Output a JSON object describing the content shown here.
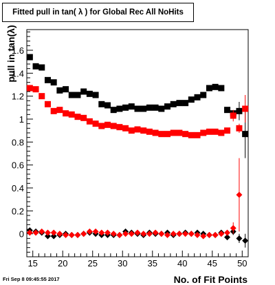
{
  "title": "Fitted pull in tan( λ ) for Global Rec All NoHits",
  "footer": "Fri Sep  8 09:45:55 2017",
  "chart_data": {
    "type": "scatter",
    "title": "Fitted pull in tan( λ ) for Global Rec All NoHits",
    "xlabel": "No. of Fit Points",
    "ylabel": "pull in tan(λ)",
    "xlim": [
      14,
      51
    ],
    "ylim": [
      -0.2,
      1.78
    ],
    "xticks": [
      15,
      20,
      25,
      30,
      35,
      40,
      45,
      50
    ],
    "yticks": [
      0,
      0.2,
      0.4,
      0.6,
      0.8,
      1,
      1.2,
      1.4,
      1.6
    ],
    "ytick_labels": [
      "0",
      "0.2",
      "0.4",
      "0.6",
      "0.8",
      "1",
      "1.2",
      "1.4",
      "1.6"
    ],
    "grid": false,
    "colors": {
      "black": "#000000",
      "red": "#ff0000"
    },
    "series": [
      {
        "role": "sigma-black",
        "color": "#000000",
        "marker": "square",
        "points": [
          [
            14.5,
            1.54
          ],
          [
            15.5,
            1.46
          ],
          [
            16.5,
            1.45
          ],
          [
            17.5,
            1.34
          ],
          [
            18.5,
            1.32
          ],
          [
            19.5,
            1.25
          ],
          [
            20.5,
            1.26
          ],
          [
            21.5,
            1.21
          ],
          [
            22.5,
            1.21
          ],
          [
            23.5,
            1.24
          ],
          [
            24.5,
            1.22
          ],
          [
            25.5,
            1.21
          ],
          [
            26.5,
            1.13
          ],
          [
            27.5,
            1.12
          ],
          [
            28.5,
            1.08
          ],
          [
            29.5,
            1.09
          ],
          [
            30.5,
            1.1
          ],
          [
            31.5,
            1.11
          ],
          [
            32.5,
            1.09
          ],
          [
            33.5,
            1.09
          ],
          [
            34.5,
            1.1
          ],
          [
            35.5,
            1.1
          ],
          [
            36.5,
            1.09
          ],
          [
            37.5,
            1.11
          ],
          [
            38.5,
            1.13
          ],
          [
            39.5,
            1.14
          ],
          [
            40.5,
            1.14
          ],
          [
            41.5,
            1.17
          ],
          [
            42.5,
            1.19
          ],
          [
            43.5,
            1.21
          ],
          [
            44.5,
            1.27
          ],
          [
            45.5,
            1.28
          ],
          [
            46.5,
            1.27
          ],
          [
            47.5,
            1.08
          ],
          [
            48.5,
            1.05
          ],
          [
            49.5,
            1.07
          ],
          [
            50.5,
            0.87
          ]
        ],
        "errors": [
          0,
          0,
          0,
          0,
          0,
          0,
          0,
          0,
          0,
          0,
          0,
          0,
          0,
          0,
          0,
          0,
          0,
          0,
          0,
          0,
          0,
          0,
          0,
          0,
          0,
          0,
          0,
          0,
          0,
          0,
          0,
          0,
          0,
          0,
          0,
          0.08,
          0.21
        ]
      },
      {
        "role": "sigma-red",
        "color": "#ff0000",
        "marker": "square",
        "points": [
          [
            14.5,
            1.27
          ],
          [
            15.5,
            1.26
          ],
          [
            16.5,
            1.2
          ],
          [
            17.5,
            1.13
          ],
          [
            18.5,
            1.07
          ],
          [
            19.5,
            1.08
          ],
          [
            20.5,
            1.05
          ],
          [
            21.5,
            1.04
          ],
          [
            22.5,
            1.02
          ],
          [
            23.5,
            1.01
          ],
          [
            24.5,
            0.98
          ],
          [
            25.5,
            0.96
          ],
          [
            26.5,
            0.94
          ],
          [
            27.5,
            0.95
          ],
          [
            28.5,
            0.94
          ],
          [
            29.5,
            0.93
          ],
          [
            30.5,
            0.92
          ],
          [
            31.5,
            0.9
          ],
          [
            32.5,
            0.91
          ],
          [
            33.5,
            0.9
          ],
          [
            34.5,
            0.89
          ],
          [
            35.5,
            0.88
          ],
          [
            36.5,
            0.87
          ],
          [
            37.5,
            0.87
          ],
          [
            38.5,
            0.88
          ],
          [
            39.5,
            0.88
          ],
          [
            40.5,
            0.87
          ],
          [
            41.5,
            0.86
          ],
          [
            42.5,
            0.86
          ],
          [
            43.5,
            0.88
          ],
          [
            44.5,
            0.89
          ],
          [
            45.5,
            0.89
          ],
          [
            46.5,
            0.88
          ],
          [
            47.5,
            0.9
          ],
          [
            48.5,
            1.03
          ],
          [
            49.5,
            0.92
          ],
          [
            50.5,
            1.09
          ]
        ],
        "errors": [
          0,
          0,
          0,
          0,
          0,
          0,
          0,
          0,
          0,
          0,
          0,
          0,
          0,
          0,
          0,
          0,
          0,
          0,
          0,
          0,
          0,
          0,
          0,
          0,
          0,
          0,
          0,
          0,
          0,
          0,
          0,
          0,
          0,
          0,
          0.05,
          0.04,
          0.12
        ]
      },
      {
        "role": "mean-black",
        "color": "#000000",
        "marker": "diamond",
        "points": [
          [
            14.5,
            0.03
          ],
          [
            15.5,
            0.02
          ],
          [
            16.5,
            0.01
          ],
          [
            17.5,
            -0.02
          ],
          [
            18.5,
            -0.02
          ],
          [
            19.5,
            -0.01
          ],
          [
            20.5,
            0.0
          ],
          [
            21.5,
            -0.01
          ],
          [
            22.5,
            -0.01
          ],
          [
            23.5,
            0.0
          ],
          [
            24.5,
            0.01
          ],
          [
            25.5,
            0.0
          ],
          [
            26.5,
            -0.01
          ],
          [
            27.5,
            -0.01
          ],
          [
            28.5,
            -0.01
          ],
          [
            29.5,
            -0.01
          ],
          [
            30.5,
            0.02
          ],
          [
            31.5,
            0.01
          ],
          [
            32.5,
            0.0
          ],
          [
            33.5,
            -0.01
          ],
          [
            34.5,
            0.01
          ],
          [
            35.5,
            0.0
          ],
          [
            36.5,
            0.0
          ],
          [
            37.5,
            0.01
          ],
          [
            38.5,
            -0.01
          ],
          [
            39.5,
            0.0
          ],
          [
            40.5,
            0.01
          ],
          [
            41.5,
            0.0
          ],
          [
            42.5,
            0.01
          ],
          [
            43.5,
            0.0
          ],
          [
            44.5,
            -0.01
          ],
          [
            45.5,
            -0.01
          ],
          [
            46.5,
            0.01
          ],
          [
            47.5,
            -0.03
          ],
          [
            48.5,
            0.02
          ],
          [
            49.5,
            -0.04
          ],
          [
            50.5,
            -0.06
          ]
        ],
        "errors": [
          0,
          0,
          0,
          0,
          0,
          0,
          0,
          0,
          0,
          0,
          0,
          0,
          0,
          0,
          0,
          0,
          0,
          0,
          0,
          0,
          0,
          0,
          0,
          0,
          0,
          0,
          0,
          0,
          0,
          0,
          0,
          0,
          0,
          0.02,
          0.03,
          0.04,
          0.06
        ]
      },
      {
        "role": "mean-red",
        "color": "#ff0000",
        "marker": "diamond",
        "points": [
          [
            14.5,
            0.01
          ],
          [
            15.5,
            0.01
          ],
          [
            16.5,
            0.02
          ],
          [
            17.5,
            0.01
          ],
          [
            18.5,
            0.01
          ],
          [
            19.5,
            0.0
          ],
          [
            20.5,
            -0.01
          ],
          [
            21.5,
            -0.01
          ],
          [
            22.5,
            -0.01
          ],
          [
            23.5,
            0.0
          ],
          [
            24.5,
            0.02
          ],
          [
            25.5,
            0.02
          ],
          [
            26.5,
            0.01
          ],
          [
            27.5,
            0.01
          ],
          [
            28.5,
            0.0
          ],
          [
            29.5,
            -0.01
          ],
          [
            30.5,
            0.0
          ],
          [
            31.5,
            0.0
          ],
          [
            32.5,
            0.01
          ],
          [
            33.5,
            0.0
          ],
          [
            34.5,
            0.0
          ],
          [
            35.5,
            0.01
          ],
          [
            36.5,
            0.0
          ],
          [
            37.5,
            -0.01
          ],
          [
            38.5,
            0.0
          ],
          [
            39.5,
            0.0
          ],
          [
            40.5,
            0.0
          ],
          [
            41.5,
            0.0
          ],
          [
            42.5,
            -0.01
          ],
          [
            43.5,
            -0.02
          ],
          [
            44.5,
            -0.01
          ],
          [
            45.5,
            -0.01
          ],
          [
            46.5,
            0.0
          ],
          [
            47.5,
            0.01
          ],
          [
            48.5,
            0.05
          ],
          [
            49.5,
            0.34
          ]
        ],
        "errors": [
          0,
          0,
          0,
          0,
          0,
          0,
          0,
          0,
          0,
          0,
          0,
          0,
          0,
          0,
          0,
          0,
          0,
          0,
          0,
          0,
          0,
          0,
          0,
          0,
          0,
          0,
          0,
          0,
          0,
          0,
          0,
          0,
          0,
          0.02,
          0.05,
          0.32
        ]
      }
    ]
  }
}
